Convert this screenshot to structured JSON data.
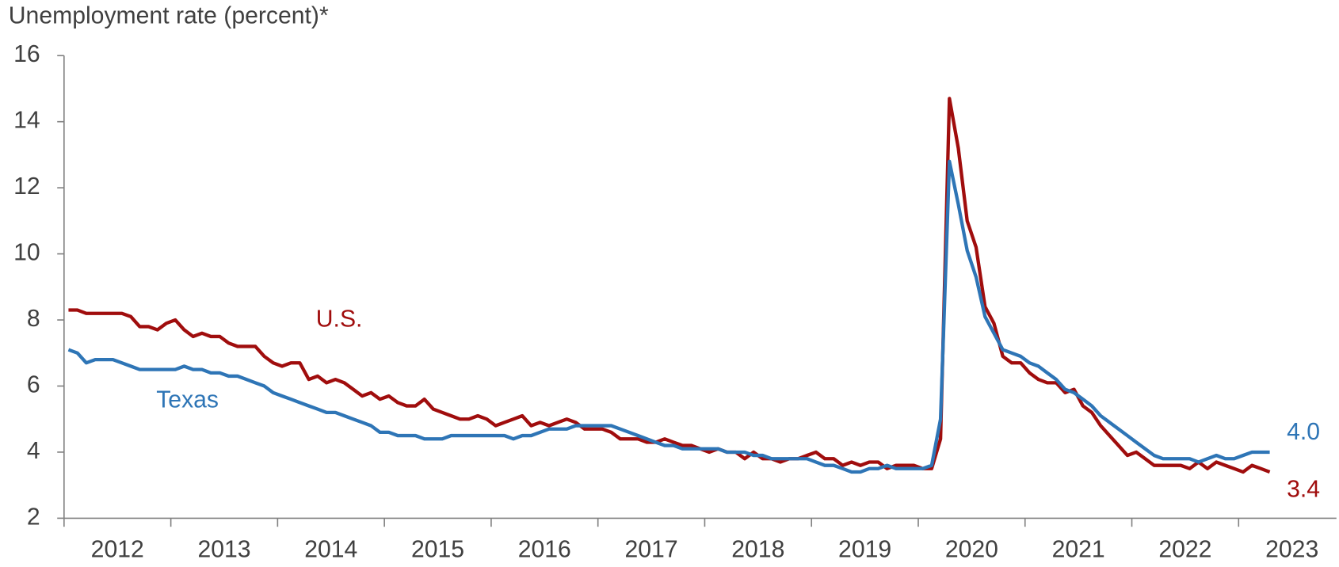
{
  "chart_data": {
    "type": "line",
    "title": "Unemployment rate (percent)*",
    "categories": [
      null,
      null,
      null,
      null,
      null,
      null,
      "2012",
      null,
      null,
      null,
      null,
      null,
      null,
      null,
      null,
      null,
      null,
      null,
      "2013",
      null,
      null,
      null,
      null,
      null,
      null,
      null,
      null,
      null,
      null,
      null,
      "2014",
      null,
      null,
      null,
      null,
      null,
      null,
      null,
      null,
      null,
      null,
      null,
      "2015",
      null,
      null,
      null,
      null,
      null,
      null,
      null,
      null,
      null,
      null,
      null,
      "2016",
      null,
      null,
      null,
      null,
      null,
      null,
      null,
      null,
      null,
      null,
      null,
      "2017",
      null,
      null,
      null,
      null,
      null,
      null,
      null,
      null,
      null,
      null,
      null,
      "2018",
      null,
      null,
      null,
      null,
      null,
      null,
      null,
      null,
      null,
      null,
      null,
      "2019",
      null,
      null,
      null,
      null,
      null,
      null,
      null,
      null,
      null,
      null,
      null,
      "2020",
      null,
      null,
      null,
      null,
      null,
      null,
      null,
      null,
      null,
      null,
      null,
      "2021",
      null,
      null,
      null,
      null,
      null,
      null,
      null,
      null,
      null,
      null,
      null,
      "2022",
      null,
      null,
      null,
      null,
      null,
      null,
      null,
      null,
      null,
      null,
      null,
      "2023",
      null,
      null,
      null,
      null,
      null
    ],
    "series": [
      {
        "name": "U.S.",
        "color": "#a00d0d",
        "values": [
          8.3,
          8.3,
          8.2,
          8.2,
          8.2,
          8.2,
          8.2,
          8.1,
          7.8,
          7.8,
          7.7,
          7.9,
          8.0,
          7.7,
          7.5,
          7.6,
          7.5,
          7.5,
          7.3,
          7.2,
          7.2,
          7.2,
          6.9,
          6.7,
          6.6,
          6.7,
          6.7,
          6.2,
          6.3,
          6.1,
          6.2,
          6.1,
          5.9,
          5.7,
          5.8,
          5.6,
          5.7,
          5.5,
          5.4,
          5.4,
          5.6,
          5.3,
          5.2,
          5.1,
          5.0,
          5.0,
          5.1,
          5.0,
          4.8,
          4.9,
          5.0,
          5.1,
          4.8,
          4.9,
          4.8,
          4.9,
          5.0,
          4.9,
          4.7,
          4.7,
          4.7,
          4.6,
          4.4,
          4.4,
          4.4,
          4.3,
          4.3,
          4.4,
          4.3,
          4.2,
          4.2,
          4.1,
          4.0,
          4.1,
          4.0,
          4.0,
          3.8,
          4.0,
          3.8,
          3.8,
          3.7,
          3.8,
          3.8,
          3.9,
          4.0,
          3.8,
          3.8,
          3.6,
          3.7,
          3.6,
          3.7,
          3.7,
          3.5,
          3.6,
          3.6,
          3.6,
          3.5,
          3.5,
          4.4,
          14.7,
          13.2,
          11.0,
          10.2,
          8.4,
          7.9,
          6.9,
          6.7,
          6.7,
          6.4,
          6.2,
          6.1,
          6.1,
          5.8,
          5.9,
          5.4,
          5.2,
          4.8,
          4.5,
          4.2,
          3.9,
          4.0,
          3.8,
          3.6,
          3.6,
          3.6,
          3.6,
          3.5,
          3.7,
          3.5,
          3.7,
          3.6,
          3.5,
          3.4,
          3.6,
          3.5,
          3.4,
          null,
          null,
          null,
          null,
          null,
          null,
          null,
          null
        ],
        "value_labels": [
          null,
          null,
          null,
          null,
          null,
          null,
          null,
          null,
          null,
          null,
          null,
          null,
          null,
          null,
          null,
          null,
          null,
          null,
          null,
          null,
          null,
          null,
          null,
          null,
          null,
          null,
          null,
          null,
          null,
          null,
          null,
          null,
          null,
          null,
          null,
          null,
          null,
          null,
          null,
          null,
          null,
          null,
          null,
          null,
          null,
          null,
          null,
          null,
          null,
          null,
          null,
          null,
          null,
          null,
          null,
          null,
          null,
          null,
          null,
          null,
          null,
          null,
          null,
          null,
          null,
          null,
          null,
          null,
          null,
          null,
          null,
          null,
          null,
          null,
          null,
          null,
          null,
          null,
          null,
          null,
          null,
          null,
          null,
          null,
          null,
          null,
          null,
          null,
          null,
          null,
          null,
          null,
          null,
          null,
          null,
          null,
          null,
          null,
          null,
          null,
          null,
          null,
          null,
          null,
          null,
          null,
          null,
          null,
          null,
          null,
          null,
          null,
          null,
          null,
          null,
          null,
          null,
          null,
          null,
          null,
          null,
          null,
          null,
          null,
          null,
          null,
          null,
          null,
          null,
          null,
          null,
          null,
          null,
          null,
          null,
          "3.4",
          null,
          null,
          null,
          null,
          null,
          null,
          null,
          null
        ]
      },
      {
        "name": "Texas",
        "color": "#2e75b6",
        "values": [
          7.1,
          7.0,
          6.7,
          6.8,
          6.8,
          6.8,
          6.7,
          6.6,
          6.5,
          6.5,
          6.5,
          6.5,
          6.5,
          6.6,
          6.5,
          6.5,
          6.4,
          6.4,
          6.3,
          6.3,
          6.2,
          6.1,
          6.0,
          5.8,
          5.7,
          5.6,
          5.5,
          5.4,
          5.3,
          5.2,
          5.2,
          5.1,
          5.0,
          4.9,
          4.8,
          4.6,
          4.6,
          4.5,
          4.5,
          4.5,
          4.4,
          4.4,
          4.4,
          4.5,
          4.5,
          4.5,
          4.5,
          4.5,
          4.5,
          4.5,
          4.4,
          4.5,
          4.5,
          4.6,
          4.7,
          4.7,
          4.7,
          4.8,
          4.8,
          4.8,
          4.8,
          4.8,
          4.7,
          4.6,
          4.5,
          4.4,
          4.3,
          4.2,
          4.2,
          4.1,
          4.1,
          4.1,
          4.1,
          4.1,
          4.0,
          4.0,
          4.0,
          3.9,
          3.9,
          3.8,
          3.8,
          3.8,
          3.8,
          3.8,
          3.7,
          3.6,
          3.6,
          3.5,
          3.4,
          3.4,
          3.5,
          3.5,
          3.6,
          3.5,
          3.5,
          3.5,
          3.5,
          3.6,
          5.0,
          12.8,
          11.5,
          10.1,
          9.3,
          8.1,
          7.6,
          7.1,
          7.0,
          6.9,
          6.7,
          6.6,
          6.4,
          6.2,
          5.9,
          5.8,
          5.6,
          5.4,
          5.1,
          4.9,
          4.7,
          4.5,
          4.3,
          4.1,
          3.9,
          3.8,
          3.8,
          3.8,
          3.8,
          3.7,
          3.8,
          3.9,
          3.8,
          3.8,
          3.9,
          4.0,
          4.0,
          4.0,
          null,
          null,
          null,
          null,
          null,
          null,
          null,
          null
        ],
        "value_labels": [
          null,
          null,
          null,
          null,
          null,
          null,
          null,
          null,
          null,
          null,
          null,
          null,
          null,
          null,
          null,
          null,
          null,
          null,
          null,
          null,
          null,
          null,
          null,
          null,
          null,
          null,
          null,
          null,
          null,
          null,
          null,
          null,
          null,
          null,
          null,
          null,
          null,
          null,
          null,
          null,
          null,
          null,
          null,
          null,
          null,
          null,
          null,
          null,
          null,
          null,
          null,
          null,
          null,
          null,
          null,
          null,
          null,
          null,
          null,
          null,
          null,
          null,
          null,
          null,
          null,
          null,
          null,
          null,
          null,
          null,
          null,
          null,
          null,
          null,
          null,
          null,
          null,
          null,
          null,
          null,
          null,
          null,
          null,
          null,
          null,
          null,
          null,
          null,
          null,
          null,
          null,
          null,
          null,
          null,
          null,
          null,
          null,
          null,
          null,
          null,
          null,
          null,
          null,
          null,
          null,
          null,
          null,
          null,
          null,
          null,
          null,
          null,
          null,
          null,
          null,
          null,
          null,
          null,
          null,
          null,
          null,
          null,
          null,
          null,
          null,
          null,
          null,
          null,
          null,
          null,
          null,
          null,
          null,
          null,
          null,
          "4.0",
          null,
          null,
          null,
          null,
          null,
          null,
          null,
          null
        ]
      }
    ],
    "ylim": [
      2,
      16
    ],
    "yticks": [
      2,
      4,
      6,
      8,
      10,
      12,
      14,
      16
    ],
    "grid": false
  }
}
